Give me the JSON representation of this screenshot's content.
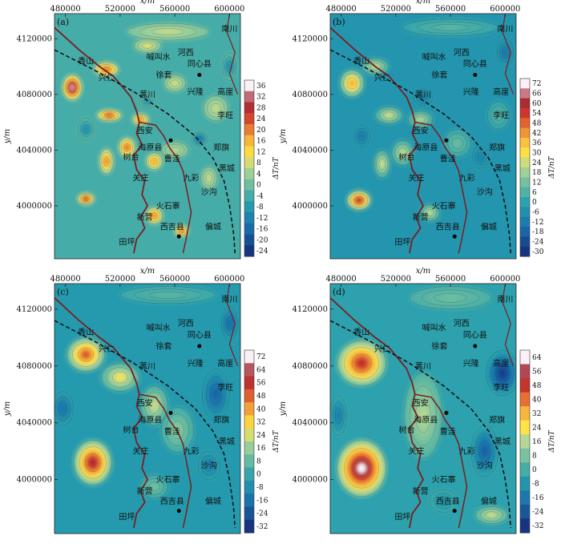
{
  "x_axis": {
    "label": "x/m",
    "ticks": [
      "480000",
      "520000",
      "560000",
      "600000"
    ]
  },
  "y_axis": {
    "label": "y/m",
    "ticks": [
      "4120000",
      "4080000",
      "4040000",
      "4000000"
    ]
  },
  "colorbar_label": "ΔT/nT",
  "panels": [
    {
      "label": "(a)",
      "colorbar_ticks": [
        "36",
        "32",
        "28",
        "24",
        "20",
        "16",
        "12",
        "8",
        "4",
        "0",
        "-4",
        "-8",
        "-12",
        "-16",
        "-20",
        "-24"
      ],
      "anomalies": [
        {
          "x": 485000,
          "y": 4085000,
          "rx": 7000,
          "ry": 9000,
          "v": 34
        },
        {
          "x": 510000,
          "y": 4098000,
          "rx": 9000,
          "ry": 5000,
          "v": 22
        },
        {
          "x": 512000,
          "y": 4065000,
          "rx": 9000,
          "ry": 4000,
          "v": 24
        },
        {
          "x": 535000,
          "y": 4062000,
          "rx": 6000,
          "ry": 4000,
          "v": 20
        },
        {
          "x": 525000,
          "y": 4042000,
          "rx": 6000,
          "ry": 7000,
          "v": 22
        },
        {
          "x": 545000,
          "y": 4032000,
          "rx": 6000,
          "ry": 6000,
          "v": 18
        },
        {
          "x": 510000,
          "y": 4032000,
          "rx": 5000,
          "ry": 9000,
          "v": 20
        },
        {
          "x": 495000,
          "y": 4005000,
          "rx": 6000,
          "ry": 4000,
          "v": 26
        },
        {
          "x": 545000,
          "y": 3993000,
          "rx": 6000,
          "ry": 6000,
          "v": 20
        },
        {
          "x": 565000,
          "y": 3982000,
          "rx": 5000,
          "ry": 4000,
          "v": 22
        },
        {
          "x": 555000,
          "y": 4125000,
          "rx": 30000,
          "ry": 6000,
          "v": 7
        },
        {
          "x": 540000,
          "y": 4115000,
          "rx": 10000,
          "ry": 5000,
          "v": 9
        },
        {
          "x": 590000,
          "y": 4070000,
          "rx": 9000,
          "ry": 9000,
          "v": 7
        },
        {
          "x": 560000,
          "y": 4088000,
          "rx": 8000,
          "ry": 6000,
          "v": 8
        },
        {
          "x": 585000,
          "y": 4020000,
          "rx": 6000,
          "ry": 8000,
          "v": 7
        },
        {
          "x": 560000,
          "y": 4040000,
          "rx": 10000,
          "ry": 6000,
          "v": 6
        },
        {
          "x": 600000,
          "y": 4100000,
          "rx": 5000,
          "ry": 10000,
          "v": -10
        },
        {
          "x": 578000,
          "y": 4048000,
          "rx": 6000,
          "ry": 5000,
          "v": -14
        },
        {
          "x": 495000,
          "y": 4055000,
          "rx": 6000,
          "ry": 8000,
          "v": -10
        },
        {
          "x": 540000,
          "y": 4075000,
          "rx": 6000,
          "ry": 5000,
          "v": -8
        }
      ]
    },
    {
      "label": "(b)",
      "colorbar_ticks": [
        "72",
        "66",
        "60",
        "54",
        "48",
        "42",
        "36",
        "30",
        "24",
        "18",
        "12",
        "6",
        "0",
        "-6",
        "-12",
        "-18",
        "-24",
        "-30"
      ],
      "anomalies": [
        {
          "x": 488000,
          "y": 4088000,
          "rx": 9000,
          "ry": 10000,
          "v": 40
        },
        {
          "x": 505000,
          "y": 4100000,
          "rx": 10000,
          "ry": 6000,
          "v": 22
        },
        {
          "x": 515000,
          "y": 4065000,
          "rx": 10000,
          "ry": 6000,
          "v": 24
        },
        {
          "x": 538000,
          "y": 4062000,
          "rx": 9000,
          "ry": 6000,
          "v": 20
        },
        {
          "x": 525000,
          "y": 4038000,
          "rx": 8000,
          "ry": 9000,
          "v": 22
        },
        {
          "x": 510000,
          "y": 4030000,
          "rx": 6000,
          "ry": 10000,
          "v": 24
        },
        {
          "x": 493000,
          "y": 4004000,
          "rx": 9000,
          "ry": 7000,
          "v": 58
        },
        {
          "x": 545000,
          "y": 3995000,
          "rx": 7000,
          "ry": 6000,
          "v": 22
        },
        {
          "x": 565000,
          "y": 4045000,
          "rx": 10000,
          "ry": 10000,
          "v": 10
        },
        {
          "x": 560000,
          "y": 4128000,
          "rx": 35000,
          "ry": 6000,
          "v": 7
        },
        {
          "x": 595000,
          "y": 4065000,
          "rx": 8000,
          "ry": 10000,
          "v": 6
        },
        {
          "x": 600000,
          "y": 4110000,
          "rx": 6000,
          "ry": 10000,
          "v": -14
        },
        {
          "x": 582000,
          "y": 4035000,
          "rx": 6000,
          "ry": 8000,
          "v": -10
        },
        {
          "x": 540000,
          "y": 4078000,
          "rx": 7000,
          "ry": 6000,
          "v": -10
        },
        {
          "x": 495000,
          "y": 4050000,
          "rx": 6000,
          "ry": 8000,
          "v": -12
        }
      ]
    },
    {
      "label": "(c)",
      "colorbar_ticks": [
        "72",
        "64",
        "56",
        "48",
        "40",
        "32",
        "24",
        "16",
        "8",
        "0",
        "-8",
        "-16",
        "-24",
        "-32"
      ],
      "anomalies": [
        {
          "x": 495000,
          "y": 4088000,
          "rx": 14000,
          "ry": 12000,
          "v": 50
        },
        {
          "x": 520000,
          "y": 4072000,
          "rx": 14000,
          "ry": 10000,
          "v": 28
        },
        {
          "x": 545000,
          "y": 4052000,
          "rx": 10000,
          "ry": 14000,
          "v": 22
        },
        {
          "x": 500000,
          "y": 4012000,
          "rx": 14000,
          "ry": 16000,
          "v": 60
        },
        {
          "x": 562000,
          "y": 4035000,
          "rx": 12000,
          "ry": 16000,
          "v": 14
        },
        {
          "x": 555000,
          "y": 4130000,
          "rx": 35000,
          "ry": 6000,
          "v": 6
        },
        {
          "x": 545000,
          "y": 3995000,
          "rx": 10000,
          "ry": 8000,
          "v": 10
        },
        {
          "x": 590000,
          "y": 4060000,
          "rx": 10000,
          "ry": 18000,
          "v": -20
        },
        {
          "x": 600000,
          "y": 4110000,
          "rx": 6000,
          "ry": 12000,
          "v": -18
        },
        {
          "x": 478000,
          "y": 4050000,
          "rx": 8000,
          "ry": 12000,
          "v": -16
        },
        {
          "x": 585000,
          "y": 4010000,
          "rx": 8000,
          "ry": 10000,
          "v": -12
        }
      ]
    },
    {
      "label": "(d)",
      "colorbar_ticks": [
        "64",
        "56",
        "48",
        "40",
        "32",
        "24",
        "16",
        "8",
        "0",
        "-8",
        "-16",
        "-24",
        "-32"
      ],
      "anomalies": [
        {
          "x": 495000,
          "y": 4082000,
          "rx": 18000,
          "ry": 16000,
          "v": 50
        },
        {
          "x": 495000,
          "y": 4008000,
          "rx": 18000,
          "ry": 20000,
          "v": 64
        },
        {
          "x": 540000,
          "y": 4045000,
          "rx": 14000,
          "ry": 30000,
          "v": 16
        },
        {
          "x": 560000,
          "y": 4128000,
          "rx": 30000,
          "ry": 8000,
          "v": 6
        },
        {
          "x": 590000,
          "y": 3975000,
          "rx": 12000,
          "ry": 6000,
          "v": 18
        },
        {
          "x": 598000,
          "y": 4075000,
          "rx": 12000,
          "ry": 16000,
          "v": -30
        },
        {
          "x": 585000,
          "y": 4020000,
          "rx": 10000,
          "ry": 18000,
          "v": -22
        },
        {
          "x": 478000,
          "y": 4045000,
          "rx": 6000,
          "ry": 14000,
          "v": -14
        },
        {
          "x": 555000,
          "y": 3985000,
          "rx": 10000,
          "ry": 8000,
          "v": -8
        }
      ]
    }
  ],
  "places": [
    {
      "name": "南川",
      "x": 600000,
      "y": 4125000,
      "dot": false
    },
    {
      "name": "喊叫水",
      "x": 548000,
      "y": 4105000,
      "dot": false
    },
    {
      "name": "河西",
      "x": 568000,
      "y": 4108000,
      "dot": false
    },
    {
      "name": "同心县",
      "x": 578000,
      "y": 4100000,
      "dot": false
    },
    {
      "name": "香山",
      "x": 495000,
      "y": 4102000,
      "dot": false
    },
    {
      "name": "徐套",
      "x": 552000,
      "y": 4092000,
      "dot": false
    },
    {
      "name": "兴仁",
      "x": 510000,
      "y": 4090000,
      "dot": false
    },
    {
      "name": "兴隆",
      "x": 575000,
      "y": 4080000,
      "dot": false
    },
    {
      "name": "高崖",
      "x": 597000,
      "y": 4080000,
      "dot": false
    },
    {
      "name": "蒿川",
      "x": 540000,
      "y": 4078000,
      "dot": false
    },
    {
      "name": "李旺",
      "x": 597000,
      "y": 4063000,
      "dot": false
    },
    {
      "name": "西安",
      "x": 538000,
      "y": 4052000,
      "dot": false
    },
    {
      "name": "海原县",
      "x": 542000,
      "y": 4040000,
      "dot": false
    },
    {
      "name": "郑旗",
      "x": 594000,
      "y": 4040000,
      "dot": false
    },
    {
      "name": "树台",
      "x": 528000,
      "y": 4033000,
      "dot": false
    },
    {
      "name": "曹洼",
      "x": 558000,
      "y": 4032000,
      "dot": false
    },
    {
      "name": "黑城",
      "x": 598000,
      "y": 4025000,
      "dot": false
    },
    {
      "name": "九彩",
      "x": 572000,
      "y": 4018000,
      "dot": false
    },
    {
      "name": "关庄",
      "x": 535000,
      "y": 4018000,
      "dot": false
    },
    {
      "name": "沙沟",
      "x": 585000,
      "y": 4008000,
      "dot": false
    },
    {
      "name": "火石寨",
      "x": 555000,
      "y": 3998000,
      "dot": false
    },
    {
      "name": "新营",
      "x": 538000,
      "y": 3990000,
      "dot": false
    },
    {
      "name": "西吉县",
      "x": 558000,
      "y": 3983000,
      "dot": false
    },
    {
      "name": "偏城",
      "x": 588000,
      "y": 3983000,
      "dot": false
    },
    {
      "name": "田坪",
      "x": 525000,
      "y": 3972000,
      "dot": false
    }
  ]
}
